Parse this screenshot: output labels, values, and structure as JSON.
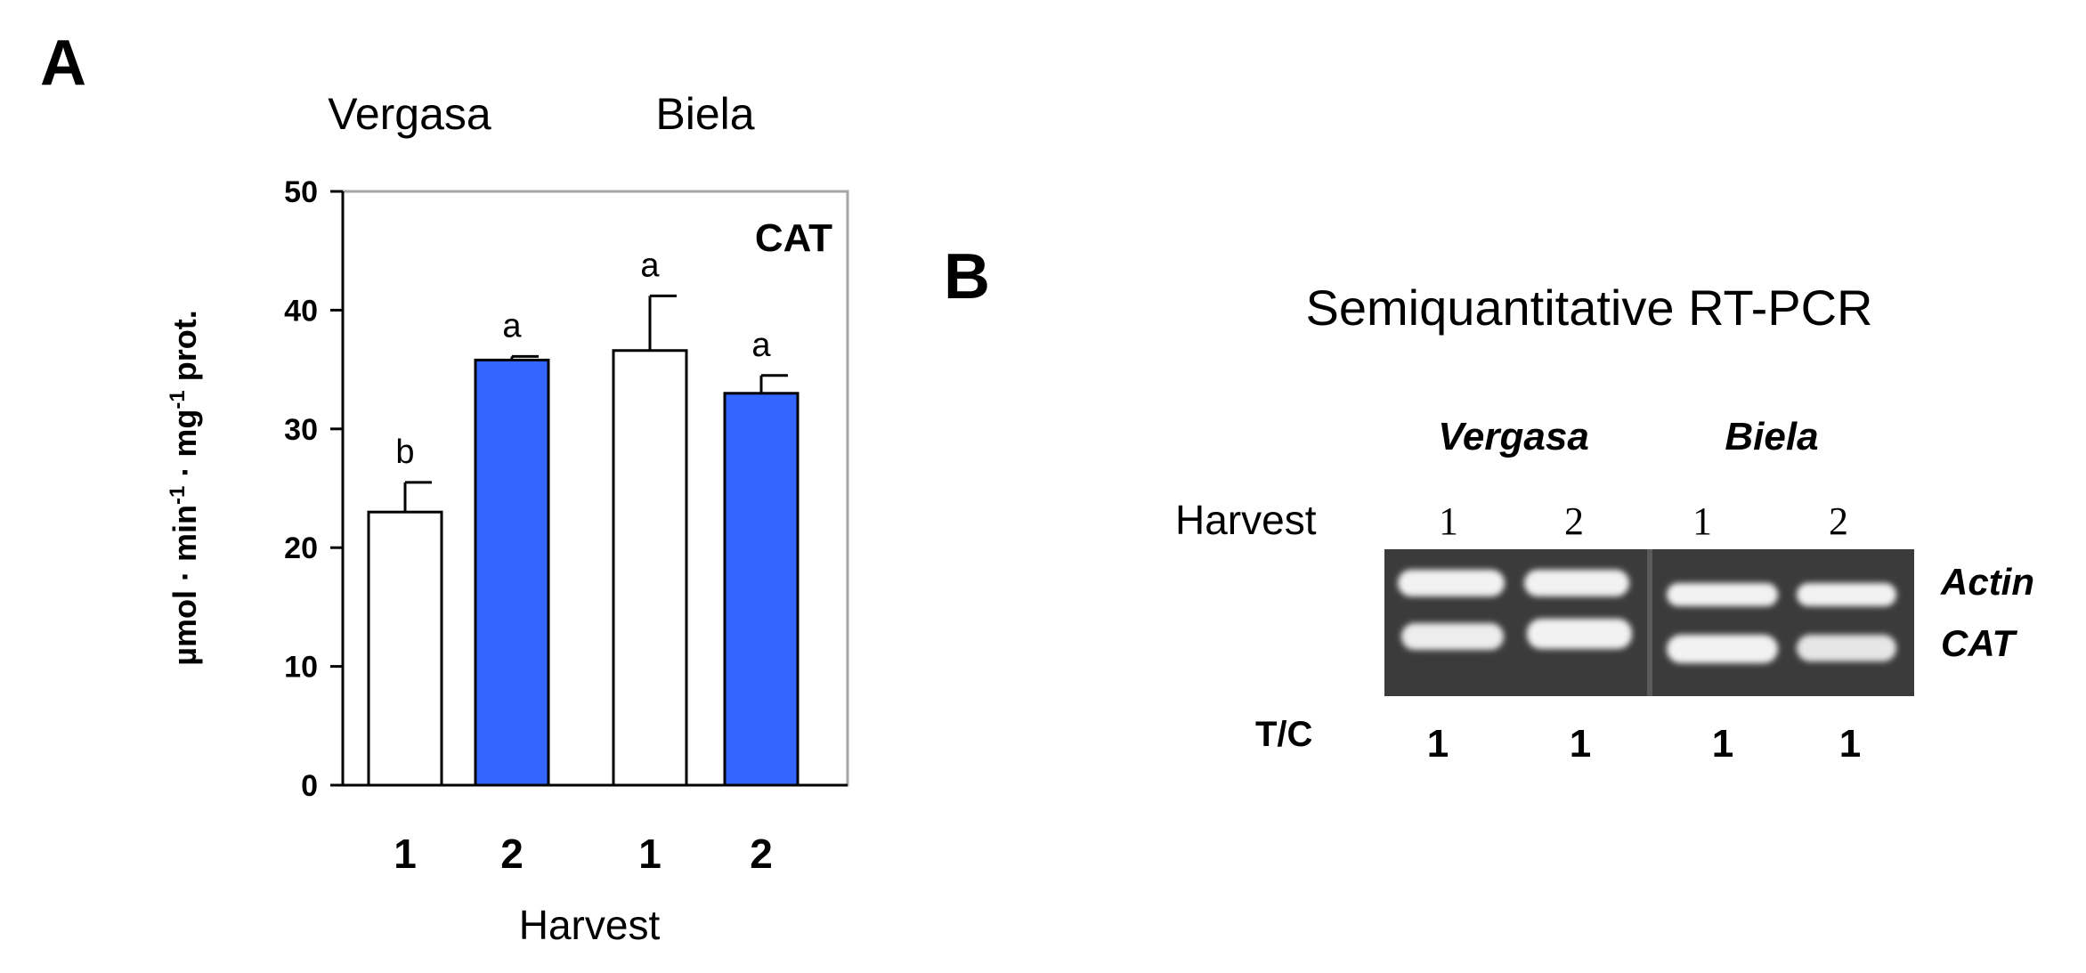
{
  "panel_a": {
    "letter": "A",
    "groups": [
      "Vergasa",
      "Biela"
    ],
    "tag": "CAT",
    "ylabel_parts": [
      "µmol · min",
      "-1",
      " · mg",
      "-1",
      " prot."
    ],
    "xlabel": "Harvest"
  },
  "panel_b": {
    "letter": "B",
    "title": "Semiquantitative RT-PCR",
    "groups": [
      "Vergasa",
      "Biela"
    ],
    "harvest_label": "Harvest",
    "lanes": [
      "1",
      "2",
      "1",
      "2"
    ],
    "bands": [
      "Actin",
      "CAT"
    ],
    "tc_label": "T/C",
    "tc_values": [
      "1",
      "1",
      "1",
      "1"
    ]
  },
  "chart_data": {
    "type": "bar",
    "categories": [
      "1",
      "2",
      "1",
      "2"
    ],
    "groups": [
      "Vergasa",
      "Vergasa",
      "Biela",
      "Biela"
    ],
    "values": [
      23,
      35.8,
      36.6,
      33
    ],
    "errors": [
      2.5,
      0.3,
      4.6,
      1.5
    ],
    "significance": [
      "b",
      "a",
      "a",
      "a"
    ],
    "bar_colors": [
      "#ffffff",
      "#3366ff",
      "#ffffff",
      "#3366ff"
    ],
    "ylim": [
      0,
      50
    ],
    "yticks": [
      0,
      10,
      20,
      30,
      40,
      50
    ],
    "xlabel": "Harvest",
    "ylabel": "µmol · min-1 · mg-1 prot.",
    "grid": false
  }
}
